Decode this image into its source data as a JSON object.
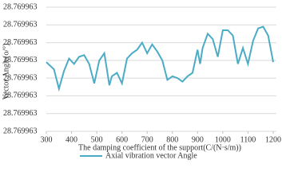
{
  "chart_data": {
    "type": "line",
    "x_label": "The damping coefficient of the support(C/(N·s/m))",
    "y_label": "Vector Angle(o/°)",
    "xlim": [
      300,
      1200
    ],
    "xticks": [
      300,
      400,
      500,
      600,
      700,
      800,
      900,
      1000,
      1100,
      1200
    ],
    "ylim": [
      28.7699626,
      28.7699633
    ],
    "yticks": [
      {
        "value": 28.7699626,
        "label": "28.769963"
      },
      {
        "value": 28.7699627,
        "label": "28.769963"
      },
      {
        "value": 28.7699628,
        "label": "28.769963"
      },
      {
        "value": 28.7699629,
        "label": "28.769963"
      },
      {
        "value": 28.769963,
        "label": "28.769963"
      },
      {
        "value": 28.7699631,
        "label": "28.769963"
      },
      {
        "value": 28.7699632,
        "label": "28.769963"
      },
      {
        "value": 28.7699633,
        "label": "28.769963"
      }
    ],
    "grid": true,
    "legend": "bottom",
    "series": [
      {
        "name": "Axial vibration vector Angle",
        "color": "#4bacc6",
        "x": [
          300,
          330,
          350,
          370,
          390,
          410,
          430,
          450,
          470,
          490,
          510,
          530,
          550,
          560,
          580,
          600,
          620,
          640,
          660,
          680,
          700,
          720,
          740,
          760,
          780,
          800,
          820,
          840,
          860,
          880,
          900,
          910,
          920,
          940,
          960,
          980,
          1000,
          1020,
          1040,
          1060,
          1080,
          1100,
          1120,
          1140,
          1160,
          1180,
          1200
        ],
        "values": [
          28.76996299,
          28.76996295,
          28.76996284,
          28.76996294,
          28.76996301,
          28.76996298,
          28.76996302,
          28.76996303,
          28.76996298,
          28.76996287,
          28.769963,
          28.76996304,
          28.76996286,
          28.76996291,
          28.76996293,
          28.76996287,
          28.76996301,
          28.76996304,
          28.76996306,
          28.7699631,
          28.76996304,
          28.76996309,
          28.76996305,
          28.769963,
          28.76996289,
          28.76996291,
          28.7699629,
          28.76996288,
          28.76996291,
          28.76996293,
          28.76996306,
          28.76996298,
          28.76996307,
          28.76996315,
          28.76996312,
          28.76996302,
          28.76996317,
          28.76996317,
          28.76996314,
          28.76996298,
          28.76996307,
          28.76996298,
          28.76996311,
          28.76996318,
          28.76996319,
          28.76996314,
          28.76996299
        ]
      }
    ]
  }
}
